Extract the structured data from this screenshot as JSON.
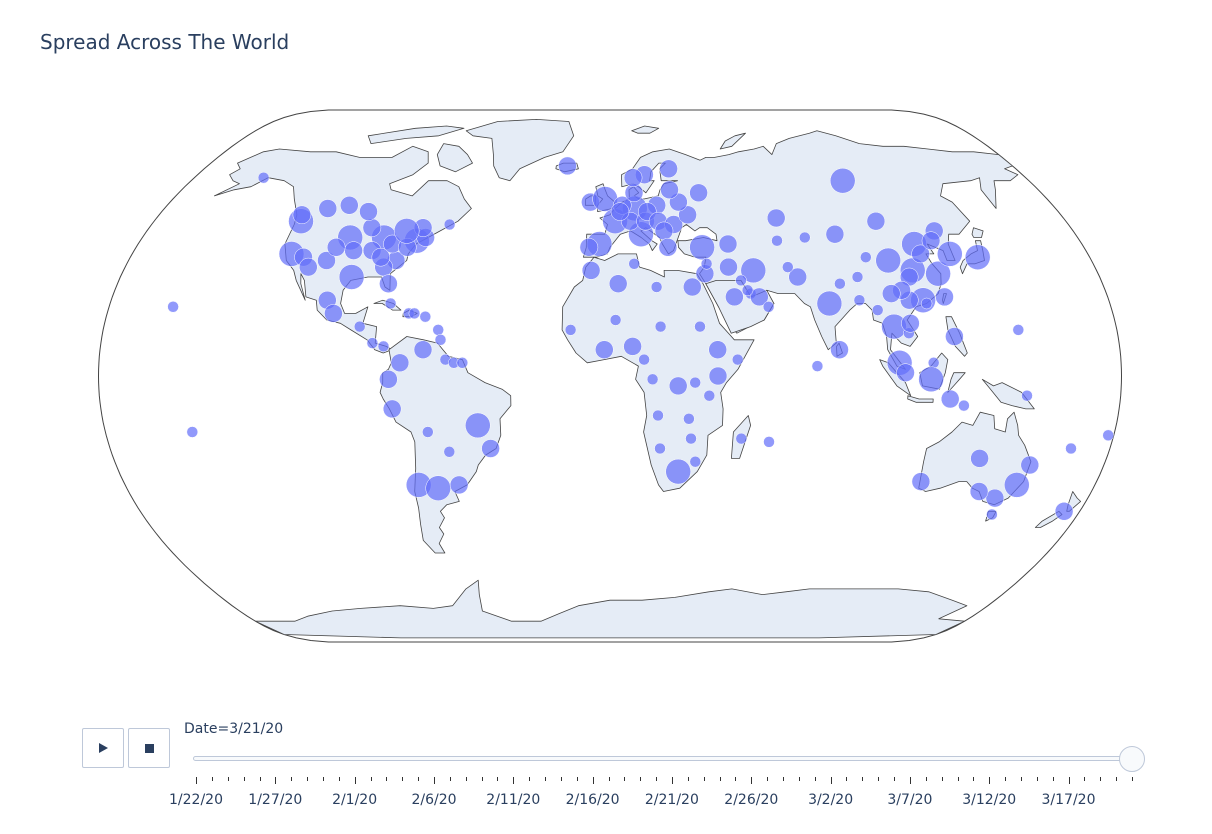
{
  "title": "Spread Across The World",
  "slider": {
    "current_label": "Date=3/21/20",
    "tick_labels": [
      "1/22/20",
      "1/27/20",
      "2/1/20",
      "2/6/20",
      "2/11/20",
      "2/16/20",
      "2/21/20",
      "2/26/20",
      "3/2/20",
      "3/7/20",
      "3/12/20",
      "3/17/20"
    ],
    "total_steps": 60,
    "current_step": 59,
    "play_icon": "play-icon",
    "stop_icon": "stop-icon"
  },
  "map": {
    "projection": "natural earth",
    "land_color": "#e5ecf6",
    "coast_color": "#444444",
    "marker_color": "#636efa",
    "markers": [
      {
        "lon": -100,
        "lat": 42,
        "s": 3
      },
      {
        "lon": -120,
        "lat": 37,
        "s": 3
      },
      {
        "lon": -74,
        "lat": 41,
        "s": 3
      },
      {
        "lon": -87,
        "lat": 42,
        "s": 3
      },
      {
        "lon": -80,
        "lat": 35,
        "s": 2
      },
      {
        "lon": -95,
        "lat": 30,
        "s": 3
      },
      {
        "lon": -122,
        "lat": 47,
        "s": 3
      },
      {
        "lon": -106,
        "lat": 35,
        "s": 2
      },
      {
        "lon": -83,
        "lat": 40,
        "s": 2
      },
      {
        "lon": -90,
        "lat": 38,
        "s": 2
      },
      {
        "lon": -115,
        "lat": 36,
        "s": 2
      },
      {
        "lon": -112,
        "lat": 33,
        "s": 2
      },
      {
        "lon": -77,
        "lat": 39,
        "s": 2
      },
      {
        "lon": -71,
        "lat": 42,
        "s": 2
      },
      {
        "lon": -84,
        "lat": 33,
        "s": 2
      },
      {
        "lon": -81,
        "lat": 28,
        "s": 2
      },
      {
        "lon": -97,
        "lat": 38,
        "s": 2
      },
      {
        "lon": -104,
        "lat": 39,
        "s": 2
      },
      {
        "lon": -93,
        "lat": 45,
        "s": 2
      },
      {
        "lon": -86,
        "lat": 36,
        "s": 2
      },
      {
        "lon": -73,
        "lat": 45,
        "s": 2
      },
      {
        "lon": -79,
        "lat": 44,
        "s": 3
      },
      {
        "lon": -114,
        "lat": 51,
        "s": 2
      },
      {
        "lon": -123,
        "lat": 49,
        "s": 2
      },
      {
        "lon": -106,
        "lat": 52,
        "s": 2
      },
      {
        "lon": -97,
        "lat": 50,
        "s": 2
      },
      {
        "lon": -63,
        "lat": 46,
        "s": 1
      },
      {
        "lon": -150,
        "lat": 61,
        "s": 1
      },
      {
        "lon": -157,
        "lat": 21,
        "s": 1
      },
      {
        "lon": -102,
        "lat": 23,
        "s": 2
      },
      {
        "lon": -99,
        "lat": 19,
        "s": 2
      },
      {
        "lon": -89,
        "lat": 15,
        "s": 1
      },
      {
        "lon": -84,
        "lat": 10,
        "s": 1
      },
      {
        "lon": -80,
        "lat": 9,
        "s": 1
      },
      {
        "lon": -79,
        "lat": 22,
        "s": 1
      },
      {
        "lon": -72,
        "lat": 19,
        "s": 1
      },
      {
        "lon": -70,
        "lat": 19,
        "s": 1
      },
      {
        "lon": -66,
        "lat": 18,
        "s": 1
      },
      {
        "lon": -61,
        "lat": 14,
        "s": 1
      },
      {
        "lon": -74,
        "lat": 4,
        "s": 2
      },
      {
        "lon": -66,
        "lat": 8,
        "s": 2
      },
      {
        "lon": -78,
        "lat": -1,
        "s": 2
      },
      {
        "lon": -77,
        "lat": -10,
        "s": 2
      },
      {
        "lon": -47,
        "lat": -15,
        "s": 3
      },
      {
        "lon": -43,
        "lat": -22,
        "s": 2
      },
      {
        "lon": -65,
        "lat": -17,
        "s": 1
      },
      {
        "lon": -58,
        "lat": -23,
        "s": 1
      },
      {
        "lon": -71,
        "lat": -33,
        "s": 3
      },
      {
        "lon": -64,
        "lat": -34,
        "s": 3
      },
      {
        "lon": -56,
        "lat": -33,
        "s": 2
      },
      {
        "lon": -58,
        "lat": 5,
        "s": 1
      },
      {
        "lon": -55,
        "lat": 4,
        "s": 1
      },
      {
        "lon": -52,
        "lat": 4,
        "s": 1
      },
      {
        "lon": -60,
        "lat": 11,
        "s": 1
      },
      {
        "lon": -19,
        "lat": 65,
        "s": 2
      },
      {
        "lon": -8,
        "lat": 53,
        "s": 2
      },
      {
        "lon": -2,
        "lat": 54,
        "s": 3
      },
      {
        "lon": 2,
        "lat": 47,
        "s": 3
      },
      {
        "lon": -4,
        "lat": 40,
        "s": 3
      },
      {
        "lon": -8,
        "lat": 39,
        "s": 2
      },
      {
        "lon": 10,
        "lat": 51,
        "s": 3
      },
      {
        "lon": 12,
        "lat": 43,
        "s": 3
      },
      {
        "lon": 8,
        "lat": 47,
        "s": 2
      },
      {
        "lon": 5,
        "lat": 52,
        "s": 2
      },
      {
        "lon": 4,
        "lat": 50,
        "s": 2
      },
      {
        "lon": 14,
        "lat": 47,
        "s": 2
      },
      {
        "lon": 10,
        "lat": 56,
        "s": 2
      },
      {
        "lon": 15,
        "lat": 62,
        "s": 2
      },
      {
        "lon": 10,
        "lat": 61,
        "s": 2
      },
      {
        "lon": 26,
        "lat": 64,
        "s": 2
      },
      {
        "lon": 19,
        "lat": 52,
        "s": 2
      },
      {
        "lon": 15,
        "lat": 50,
        "s": 2
      },
      {
        "lon": 19,
        "lat": 47,
        "s": 2
      },
      {
        "lon": 25,
        "lat": 46,
        "s": 2
      },
      {
        "lon": 21,
        "lat": 44,
        "s": 2
      },
      {
        "lon": 22,
        "lat": 39,
        "s": 2
      },
      {
        "lon": 35,
        "lat": 39,
        "s": 3
      },
      {
        "lon": 31,
        "lat": 49,
        "s": 2
      },
      {
        "lon": 28,
        "lat": 53,
        "s": 2
      },
      {
        "lon": 25,
        "lat": 57,
        "s": 2
      },
      {
        "lon": 37,
        "lat": 56,
        "s": 2
      },
      {
        "lon": 100,
        "lat": 60,
        "s": 3
      },
      {
        "lon": 45,
        "lat": 40,
        "s": 2
      },
      {
        "lon": 53,
        "lat": 32,
        "s": 3
      },
      {
        "lon": 44,
        "lat": 33,
        "s": 2
      },
      {
        "lon": 35,
        "lat": 31,
        "s": 2
      },
      {
        "lon": 36,
        "lat": 34,
        "s": 1
      },
      {
        "lon": 45,
        "lat": 24,
        "s": 2
      },
      {
        "lon": 51,
        "lat": 25,
        "s": 1
      },
      {
        "lon": 54,
        "lat": 24,
        "s": 2
      },
      {
        "lon": 57,
        "lat": 21,
        "s": 1
      },
      {
        "lon": 48,
        "lat": 29,
        "s": 1
      },
      {
        "lon": 50,
        "lat": 26,
        "s": 1
      },
      {
        "lon": 30,
        "lat": 27,
        "s": 2
      },
      {
        "lon": 9,
        "lat": 34,
        "s": 1
      },
      {
        "lon": 3,
        "lat": 28,
        "s": 2
      },
      {
        "lon": -7,
        "lat": 32,
        "s": 2
      },
      {
        "lon": 17,
        "lat": 27,
        "s": 1
      },
      {
        "lon": -14,
        "lat": 14,
        "s": 1
      },
      {
        "lon": -2,
        "lat": 8,
        "s": 2
      },
      {
        "lon": 8,
        "lat": 9,
        "s": 2
      },
      {
        "lon": 2,
        "lat": 17,
        "s": 1
      },
      {
        "lon": 12,
        "lat": 5,
        "s": 1
      },
      {
        "lon": 18,
        "lat": 15,
        "s": 1
      },
      {
        "lon": 32,
        "lat": 15,
        "s": 1
      },
      {
        "lon": 38,
        "lat": 8,
        "s": 2
      },
      {
        "lon": 38,
        "lat": 0,
        "s": 2
      },
      {
        "lon": 45,
        "lat": 5,
        "s": 1
      },
      {
        "lon": 35,
        "lat": -6,
        "s": 1
      },
      {
        "lon": 24,
        "lat": -3,
        "s": 2
      },
      {
        "lon": 15,
        "lat": -1,
        "s": 1
      },
      {
        "lon": 17,
        "lat": -12,
        "s": 1
      },
      {
        "lon": 28,
        "lat": -13,
        "s": 1
      },
      {
        "lon": 30,
        "lat": -2,
        "s": 1
      },
      {
        "lon": 47,
        "lat": -19,
        "s": 1
      },
      {
        "lon": 57,
        "lat": -20,
        "s": 1
      },
      {
        "lon": 25,
        "lat": -29,
        "s": 3
      },
      {
        "lon": 31,
        "lat": -26,
        "s": 1
      },
      {
        "lon": 18,
        "lat": -22,
        "s": 1
      },
      {
        "lon": 29,
        "lat": -19,
        "s": 1
      },
      {
        "lon": 69,
        "lat": 30,
        "s": 2
      },
      {
        "lon": 66,
        "lat": 33,
        "s": 1
      },
      {
        "lon": 66,
        "lat": 48,
        "s": 2
      },
      {
        "lon": 64,
        "lat": 41,
        "s": 1
      },
      {
        "lon": 75,
        "lat": 42,
        "s": 1
      },
      {
        "lon": 79,
        "lat": 22,
        "s": 3
      },
      {
        "lon": 84,
        "lat": 28,
        "s": 1
      },
      {
        "lon": 90,
        "lat": 23,
        "s": 1
      },
      {
        "lon": 81,
        "lat": 8,
        "s": 2
      },
      {
        "lon": 73,
        "lat": 3,
        "s": 1
      },
      {
        "lon": 96,
        "lat": 20,
        "s": 1
      },
      {
        "lon": 101,
        "lat": 15,
        "s": 3
      },
      {
        "lon": 106,
        "lat": 13,
        "s": 1
      },
      {
        "lon": 107,
        "lat": 16,
        "s": 2
      },
      {
        "lon": 102,
        "lat": 4,
        "s": 3
      },
      {
        "lon": 104,
        "lat": 1,
        "s": 2
      },
      {
        "lon": 114,
        "lat": 4,
        "s": 1
      },
      {
        "lon": 122,
        "lat": 12,
        "s": 2
      },
      {
        "lon": 113,
        "lat": -1,
        "s": 3
      },
      {
        "lon": 120,
        "lat": -7,
        "s": 2
      },
      {
        "lon": 125,
        "lat": -9,
        "s": 1
      },
      {
        "lon": 116,
        "lat": 40,
        "s": 3
      },
      {
        "lon": 112,
        "lat": 32,
        "s": 3
      },
      {
        "lon": 104,
        "lat": 35,
        "s": 3
      },
      {
        "lon": 121,
        "lat": 31,
        "s": 3
      },
      {
        "lon": 113,
        "lat": 23,
        "s": 3
      },
      {
        "lon": 108,
        "lat": 23,
        "s": 2
      },
      {
        "lon": 117,
        "lat": 37,
        "s": 2
      },
      {
        "lon": 110,
        "lat": 30,
        "s": 2
      },
      {
        "lon": 126,
        "lat": 44,
        "s": 2
      },
      {
        "lon": 123,
        "lat": 41,
        "s": 2
      },
      {
        "lon": 106,
        "lat": 26,
        "s": 2
      },
      {
        "lon": 102,
        "lat": 25,
        "s": 2
      },
      {
        "lon": 91,
        "lat": 30,
        "s": 1
      },
      {
        "lon": 87,
        "lat": 43,
        "s": 2
      },
      {
        "lon": 96,
        "lat": 36,
        "s": 1
      },
      {
        "lon": 105,
        "lat": 47,
        "s": 2
      },
      {
        "lon": 128,
        "lat": 37,
        "s": 3
      },
      {
        "lon": 138,
        "lat": 36,
        "s": 3
      },
      {
        "lon": 121,
        "lat": 24,
        "s": 2
      },
      {
        "lon": 114,
        "lat": 22,
        "s": 1
      },
      {
        "lon": 145,
        "lat": 14,
        "s": 1
      },
      {
        "lon": 134,
        "lat": -25,
        "s": 2
      },
      {
        "lon": 151,
        "lat": -33,
        "s": 3
      },
      {
        "lon": 145,
        "lat": -37,
        "s": 2
      },
      {
        "lon": 115,
        "lat": -32,
        "s": 2
      },
      {
        "lon": 153,
        "lat": -27,
        "s": 2
      },
      {
        "lon": 138,
        "lat": -35,
        "s": 2
      },
      {
        "lon": 147,
        "lat": -42,
        "s": 1
      },
      {
        "lon": 174,
        "lat": -41,
        "s": 2
      },
      {
        "lon": 178,
        "lat": -18,
        "s": 1
      },
      {
        "lon": 166,
        "lat": -22,
        "s": 1
      },
      {
        "lon": -149,
        "lat": -17,
        "s": 1
      },
      {
        "lon": 147,
        "lat": -6,
        "s": 1
      }
    ]
  }
}
